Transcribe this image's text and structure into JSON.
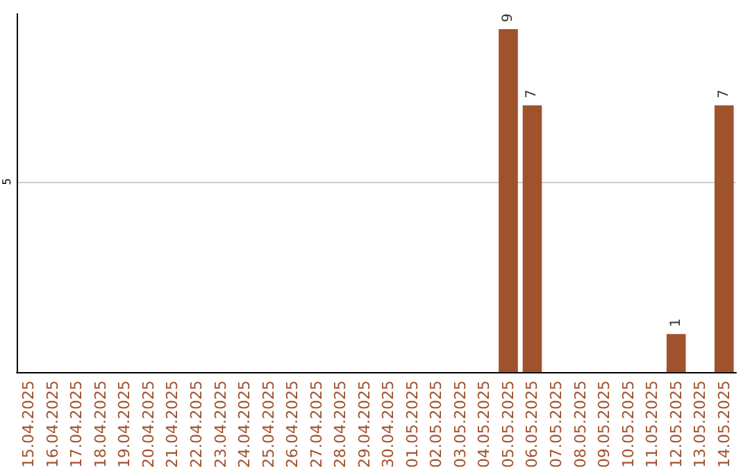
{
  "chart_data": {
    "type": "bar",
    "categories": [
      "15.04.2025",
      "16.04.2025",
      "17.04.2025",
      "18.04.2025",
      "19.04.2025",
      "20.04.2025",
      "21.04.2025",
      "22.04.2025",
      "23.04.2025",
      "24.04.2025",
      "25.04.2025",
      "26.04.2025",
      "27.04.2025",
      "28.04.2025",
      "29.04.2025",
      "30.04.2025",
      "01.05.2025",
      "02.05.2025",
      "03.05.2025",
      "04.05.2025",
      "05.05.2025",
      "06.05.2025",
      "07.05.2025",
      "08.05.2025",
      "09.05.2025",
      "10.05.2025",
      "11.05.2025",
      "12.05.2025",
      "13.05.2025",
      "14.05.2025"
    ],
    "values": [
      null,
      null,
      null,
      null,
      null,
      null,
      null,
      null,
      null,
      null,
      null,
      null,
      null,
      null,
      null,
      null,
      null,
      null,
      null,
      null,
      9,
      7,
      null,
      null,
      null,
      null,
      null,
      1,
      null,
      7
    ],
    "data_labels": true,
    "color": "#a0522d",
    "ylim": [
      0,
      9.4
    ],
    "yticks": [
      {
        "value": 0,
        "label": null
      },
      5
    ],
    "grid": "y"
  }
}
